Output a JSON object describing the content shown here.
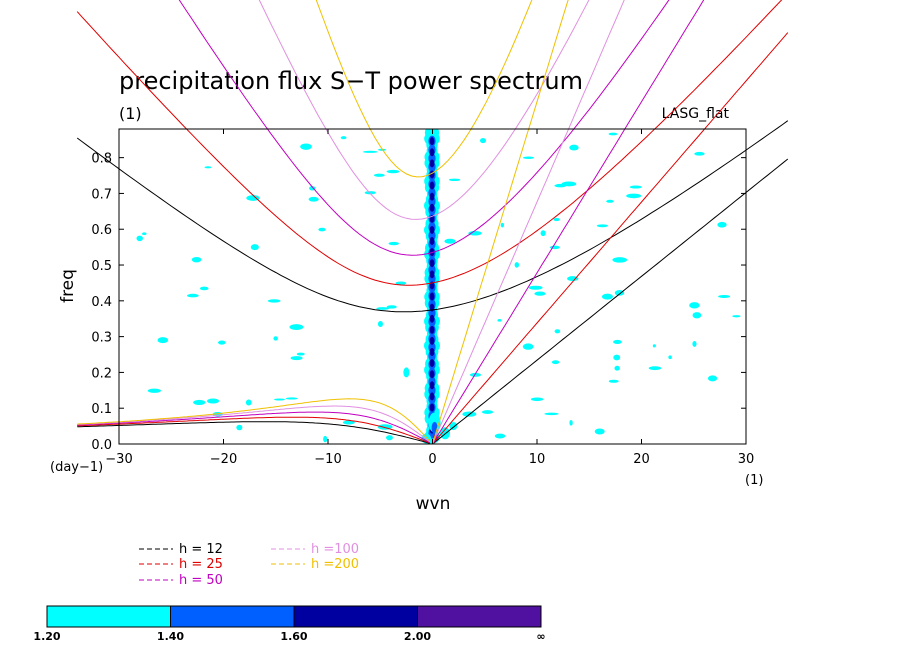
{
  "chart_data": {
    "type": "line",
    "title": "precipitation flux S−T power spectrum",
    "subtitle_left": "(1)",
    "subtitle_right": "LASG_flat",
    "xlabel": "wvn",
    "ylabel": "freq",
    "x_unit": "(1)",
    "y_unit": "(day−1)",
    "xlim": [
      -30,
      30
    ],
    "ylim": [
      0,
      0.88
    ],
    "x_ticks": [
      -30,
      -20,
      -10,
      0,
      10,
      20,
      30
    ],
    "y_ticks": [
      0.0,
      0.1,
      0.2,
      0.3,
      0.4,
      0.5,
      0.6,
      0.7,
      0.8
    ],
    "series": [
      {
        "name": "h = 12",
        "h": 12,
        "color": "#000000"
      },
      {
        "name": "h = 25",
        "h": 25,
        "color": "#e00000"
      },
      {
        "name": "h = 50",
        "h": 50,
        "color": "#c000c0"
      },
      {
        "name": "h =100",
        "h": 100,
        "color": "#e090e0"
      },
      {
        "name": "h =200",
        "h": 200,
        "color": "#f0c000"
      }
    ],
    "contour_levels": [
      {
        "label": "1.20",
        "color": "#00ffff"
      },
      {
        "label": "1.40",
        "color": "#0060ff"
      },
      {
        "label": "1.60",
        "color": "#0000a0"
      },
      {
        "label": "2.00",
        "color": "#5010a0"
      },
      {
        "label": "∞",
        "color": ""
      }
    ]
  }
}
